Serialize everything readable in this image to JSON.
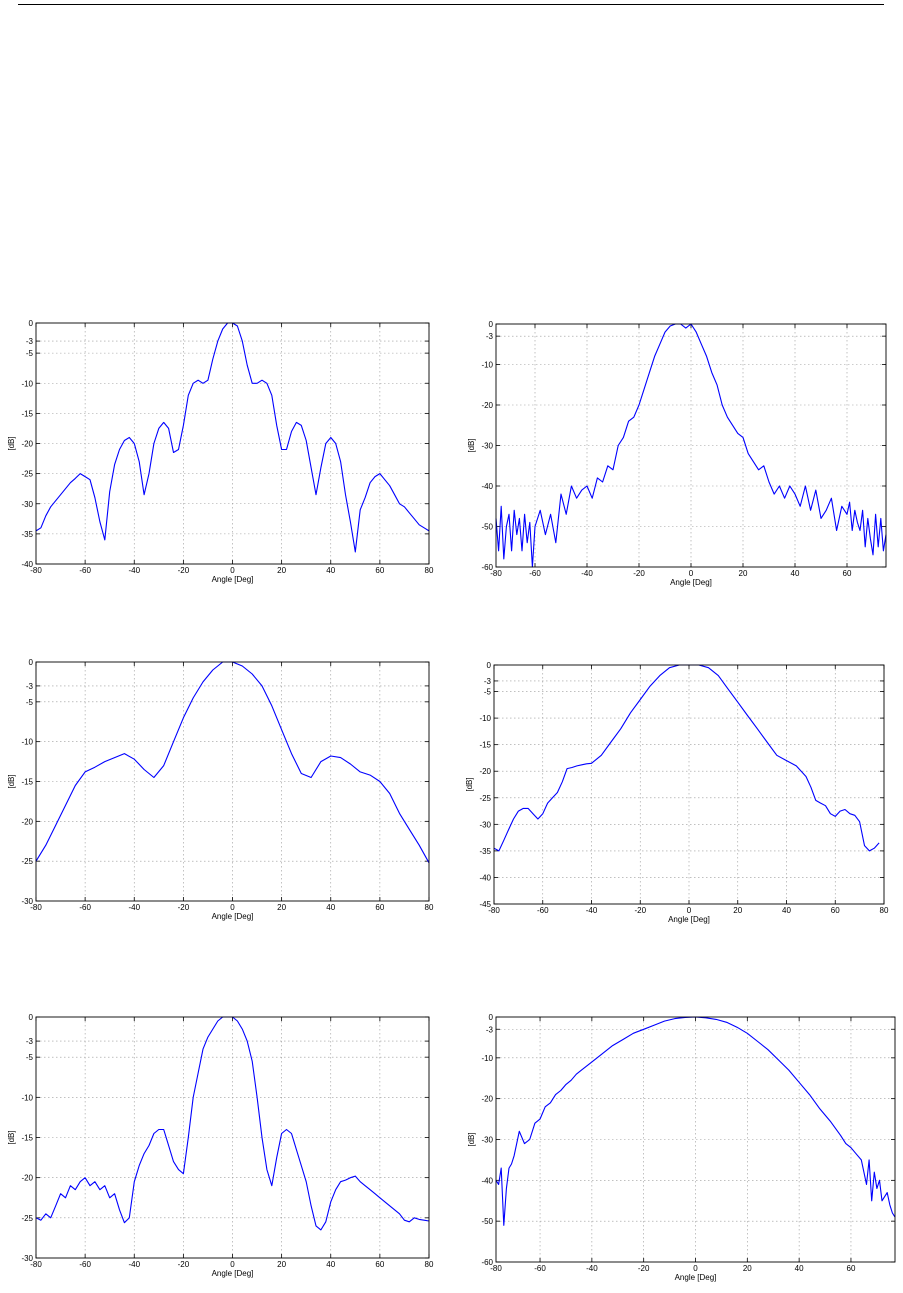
{
  "colors": {
    "line": "#0000ff",
    "grid": "#9a9a9a",
    "axis": "#000000",
    "background": "#ffffff"
  },
  "chart_data": [
    {
      "type": "line",
      "xlabel": "Angle [Deg]",
      "ylabel": "[dB]",
      "xlim": [
        -80,
        80
      ],
      "ylim": [
        -40,
        0
      ],
      "xticks": [
        -80,
        -60,
        -40,
        -20,
        0,
        20,
        40,
        60,
        80
      ],
      "yticks": [
        0,
        -3,
        -5,
        -10,
        -15,
        -20,
        -25,
        -30,
        -35,
        -40
      ],
      "grid": true,
      "series": [
        {
          "x": [
            -80,
            -78,
            -76,
            -74,
            -72,
            -70,
            -68,
            -66,
            -64,
            -62,
            -60,
            -58,
            -56,
            -54,
            -52,
            -50,
            -48,
            -46,
            -44,
            -42,
            -40,
            -38,
            -36,
            -34,
            -32,
            -30,
            -28,
            -26,
            -24,
            -22,
            -20,
            -18,
            -16,
            -14,
            -12,
            -10,
            -8,
            -6,
            -4,
            -2,
            0,
            2,
            4,
            6,
            8,
            10,
            12,
            14,
            16,
            18,
            20,
            22,
            24,
            26,
            28,
            30,
            32,
            34,
            36,
            38,
            40,
            42,
            44,
            46,
            48,
            50,
            52,
            54,
            56,
            58,
            60,
            62,
            64,
            66,
            68,
            70,
            72,
            74,
            76,
            78,
            80
          ],
          "y": [
            -34.5,
            -34,
            -32,
            -30.5,
            -29.5,
            -28.5,
            -27.5,
            -26.5,
            -25.8,
            -25,
            -25.5,
            -26,
            -29,
            -33,
            -36,
            -28,
            -23.5,
            -21,
            -19.5,
            -19,
            -20,
            -23,
            -28.5,
            -25,
            -20,
            -17.5,
            -16.5,
            -17.5,
            -21.5,
            -21,
            -17,
            -12,
            -10,
            -9.5,
            -10,
            -9.5,
            -6,
            -3,
            -1,
            0,
            0,
            -0.5,
            -3,
            -7,
            -10,
            -10,
            -9.5,
            -10,
            -12,
            -17,
            -21,
            -21,
            -18,
            -16.5,
            -17,
            -19.5,
            -24,
            -28.5,
            -24,
            -20,
            -19,
            -20,
            -23,
            -28.5,
            -33,
            -38,
            -31,
            -29,
            -26.5,
            -25.5,
            -25,
            -26,
            -27,
            -28.5,
            -30,
            -30.5,
            -31.5,
            -32.5,
            -33.5,
            -34,
            -34.5
          ]
        }
      ]
    },
    {
      "type": "line",
      "xlabel": "Angle [Deg]",
      "ylabel": "[dB]",
      "xlim": [
        -75,
        75
      ],
      "ylim": [
        -60,
        0
      ],
      "xticks": [
        -80,
        -60,
        -40,
        -20,
        0,
        20,
        40,
        60
      ],
      "xticklabels": [
        "-80",
        "-60",
        "-40",
        "-20",
        "0",
        "20",
        "40",
        "60"
      ],
      "yticks": [
        0,
        -3,
        -10,
        -20,
        -30,
        -40,
        -50,
        -60
      ],
      "grid": true,
      "series": [
        {
          "x": [
            -75,
            -74,
            -73,
            -72,
            -71,
            -70,
            -69,
            -68,
            -67,
            -66,
            -65,
            -64,
            -63,
            -62,
            -61,
            -60,
            -58,
            -56,
            -54,
            -52,
            -50,
            -48,
            -46,
            -44,
            -42,
            -40,
            -38,
            -36,
            -34,
            -32,
            -30,
            -28,
            -26,
            -24,
            -22,
            -20,
            -18,
            -16,
            -14,
            -12,
            -10,
            -8,
            -6,
            -4,
            -2,
            0,
            2,
            4,
            6,
            8,
            10,
            12,
            14,
            16,
            18,
            20,
            22,
            24,
            26,
            28,
            30,
            32,
            34,
            36,
            38,
            40,
            42,
            44,
            46,
            48,
            50,
            52,
            54,
            56,
            58,
            60,
            61,
            62,
            63,
            64,
            65,
            66,
            67,
            68,
            69,
            70,
            71,
            72,
            73,
            74,
            75
          ],
          "y": [
            -48,
            -56,
            -45,
            -58,
            -50,
            -47,
            -56,
            -46,
            -52,
            -48,
            -56,
            -47,
            -54,
            -49,
            -60,
            -50,
            -46,
            -52,
            -47,
            -54,
            -42,
            -47,
            -40,
            -43,
            -41,
            -40,
            -43,
            -38,
            -39,
            -35,
            -36,
            -30,
            -28,
            -24,
            -23,
            -20,
            -16,
            -12,
            -8,
            -5,
            -2,
            -0.5,
            0,
            0,
            -1,
            0,
            -2,
            -5,
            -8,
            -12,
            -15,
            -20,
            -23,
            -25,
            -27,
            -28,
            -32,
            -34,
            -36,
            -35,
            -39,
            -42,
            -40,
            -43,
            -40,
            -42,
            -45,
            -40,
            -46,
            -41,
            -48,
            -46,
            -43,
            -51,
            -45,
            -47,
            -44,
            -51,
            -46,
            -49,
            -51,
            -46,
            -55,
            -48,
            -53,
            -57,
            -47,
            -55,
            -48,
            -56,
            -52
          ]
        }
      ]
    },
    {
      "type": "line",
      "xlabel": "Angle [Deg]",
      "ylabel": "[dB]",
      "xlim": [
        -80,
        80
      ],
      "ylim": [
        -30,
        0
      ],
      "xticks": [
        -80,
        -60,
        -40,
        -20,
        0,
        20,
        40,
        60,
        80
      ],
      "yticks": [
        0,
        -3,
        -5,
        -10,
        -15,
        -20,
        -25,
        -30
      ],
      "grid": true,
      "series": [
        {
          "x": [
            -80,
            -76,
            -72,
            -68,
            -64,
            -60,
            -56,
            -52,
            -48,
            -44,
            -40,
            -36,
            -32,
            -28,
            -24,
            -20,
            -16,
            -12,
            -8,
            -4,
            0,
            4,
            8,
            12,
            16,
            20,
            24,
            28,
            32,
            36,
            40,
            44,
            48,
            52,
            56,
            60,
            64,
            68,
            72,
            76,
            80
          ],
          "y": [
            -25,
            -23,
            -20.5,
            -18,
            -15.5,
            -13.8,
            -13.2,
            -12.5,
            -12,
            -11.5,
            -12.2,
            -13.5,
            -14.5,
            -13,
            -10,
            -7,
            -4.5,
            -2.5,
            -1,
            0,
            0,
            -0.5,
            -1.5,
            -3,
            -5.5,
            -8.5,
            -11.5,
            -14,
            -14.5,
            -12.5,
            -11.8,
            -12,
            -12.8,
            -13.8,
            -14.2,
            -15,
            -16.5,
            -19,
            -21,
            -23,
            -25.2
          ]
        }
      ]
    },
    {
      "type": "line",
      "xlabel": "Angle [Deg]",
      "ylabel": "[dB]",
      "xlim": [
        -80,
        80
      ],
      "ylim": [
        -45,
        0
      ],
      "xticks": [
        -80,
        -60,
        -40,
        -20,
        0,
        20,
        40,
        60,
        80
      ],
      "yticks": [
        0,
        -3,
        -5,
        -10,
        -15,
        -20,
        -25,
        -30,
        -35,
        -40,
        -45
      ],
      "grid": true,
      "series": [
        {
          "x": [
            -80,
            -78,
            -76,
            -74,
            -72,
            -70,
            -68,
            -66,
            -64,
            -62,
            -60,
            -58,
            -56,
            -54,
            -52,
            -50,
            -48,
            -46,
            -44,
            -42,
            -40,
            -36,
            -32,
            -28,
            -24,
            -20,
            -16,
            -12,
            -8,
            -4,
            0,
            4,
            8,
            12,
            16,
            20,
            24,
            28,
            32,
            36,
            40,
            44,
            48,
            50,
            52,
            54,
            56,
            58,
            60,
            62,
            64,
            66,
            68,
            70,
            72,
            74,
            76,
            78
          ],
          "y": [
            -34.5,
            -35,
            -33,
            -31,
            -29,
            -27.5,
            -27,
            -27,
            -28,
            -29,
            -28,
            -26,
            -25,
            -24,
            -22,
            -19.5,
            -19.3,
            -19,
            -18.8,
            -18.6,
            -18.5,
            -17,
            -14.5,
            -12,
            -9,
            -6.5,
            -4,
            -2,
            -0.5,
            0,
            0,
            0,
            -0.5,
            -2,
            -4.5,
            -7,
            -9.5,
            -12,
            -14.5,
            -17,
            -18,
            -19,
            -21,
            -23,
            -25.5,
            -26,
            -26.5,
            -28,
            -28.5,
            -27.5,
            -27.2,
            -28,
            -28.3,
            -29.5,
            -34,
            -35,
            -34.5,
            -33.5
          ]
        }
      ]
    },
    {
      "type": "line",
      "xlabel": "Angle [Deg]",
      "ylabel": "[dB]",
      "xlim": [
        -80,
        80
      ],
      "ylim": [
        -30,
        0
      ],
      "xticks": [
        -80,
        -60,
        -40,
        -20,
        0,
        20,
        40,
        60,
        80
      ],
      "yticks": [
        0,
        -3,
        -5,
        -10,
        -15,
        -20,
        -25,
        -30
      ],
      "grid": true,
      "series": [
        {
          "x": [
            -80,
            -78,
            -76,
            -74,
            -72,
            -70,
            -68,
            -66,
            -64,
            -62,
            -60,
            -58,
            -56,
            -54,
            -52,
            -50,
            -48,
            -46,
            -44,
            -42,
            -40,
            -38,
            -36,
            -34,
            -32,
            -30,
            -28,
            -26,
            -24,
            -22,
            -20,
            -18,
            -16,
            -14,
            -12,
            -10,
            -8,
            -6,
            -4,
            -2,
            0,
            2,
            4,
            6,
            8,
            10,
            12,
            14,
            16,
            18,
            20,
            22,
            24,
            26,
            28,
            30,
            32,
            34,
            36,
            38,
            40,
            42,
            44,
            46,
            48,
            50,
            52,
            54,
            56,
            58,
            60,
            62,
            64,
            66,
            68,
            70,
            72,
            74,
            76,
            78,
            80
          ],
          "y": [
            -25,
            -25.3,
            -24.5,
            -25,
            -23.5,
            -22,
            -22.5,
            -21,
            -21.5,
            -20.5,
            -20,
            -21,
            -20.5,
            -21.5,
            -21,
            -22.5,
            -22,
            -24,
            -25.6,
            -25,
            -20.5,
            -18.5,
            -17,
            -16,
            -14.5,
            -14,
            -14,
            -16,
            -18,
            -19,
            -19.5,
            -15,
            -10,
            -7,
            -4,
            -2.5,
            -1.5,
            -0.5,
            0,
            0,
            0,
            -0.5,
            -1.5,
            -3,
            -5.5,
            -10,
            -15,
            -19,
            -21,
            -17.5,
            -14.5,
            -14,
            -14.5,
            -16.5,
            -18.5,
            -20.5,
            -23.5,
            -26,
            -26.5,
            -25.5,
            -23,
            -21.5,
            -20.5,
            -20.3,
            -20,
            -19.8,
            -20.5,
            -21,
            -21.5,
            -22,
            -22.5,
            -23,
            -23.5,
            -24,
            -24.5,
            -25.3,
            -25.5,
            -25,
            -25.2,
            -25.3,
            -25.4
          ]
        }
      ]
    },
    {
      "type": "line",
      "xlabel": "Angle [Deg]",
      "ylabel": "[dB]",
      "xlim": [
        -77,
        77
      ],
      "ylim": [
        -60,
        0
      ],
      "xticks": [
        -80,
        -60,
        -40,
        -20,
        0,
        20,
        40,
        60
      ],
      "yticks": [
        0,
        -3,
        -10,
        -20,
        -30,
        -40,
        -50,
        -60
      ],
      "grid": true,
      "series": [
        {
          "x": [
            -77,
            -76,
            -75,
            -74,
            -73,
            -72,
            -71,
            -70,
            -68,
            -66,
            -64,
            -62,
            -60,
            -58,
            -56,
            -54,
            -52,
            -50,
            -48,
            -46,
            -44,
            -40,
            -36,
            -32,
            -28,
            -24,
            -20,
            -16,
            -12,
            -8,
            -4,
            0,
            4,
            8,
            12,
            16,
            20,
            24,
            28,
            32,
            36,
            40,
            44,
            48,
            52,
            56,
            58,
            60,
            62,
            64,
            66,
            67,
            68,
            69,
            70,
            71,
            72,
            73,
            74,
            75,
            76,
            77
          ],
          "y": [
            -40,
            -41,
            -37,
            -51,
            -42,
            -37,
            -36,
            -34,
            -28,
            -31,
            -30,
            -26,
            -25,
            -22,
            -21,
            -19,
            -18,
            -16.5,
            -15.5,
            -14,
            -13,
            -11,
            -9,
            -7,
            -5.5,
            -4,
            -3,
            -2,
            -1,
            -0.4,
            -0.1,
            0,
            -0.2,
            -0.6,
            -1.3,
            -2.5,
            -4,
            -6,
            -8,
            -10.5,
            -13,
            -16,
            -19,
            -22.5,
            -25.5,
            -29,
            -31,
            -32,
            -33.5,
            -35,
            -41,
            -35,
            -45,
            -38,
            -42,
            -40,
            -45,
            -44,
            -43,
            -46,
            -48,
            -49
          ]
        }
      ]
    }
  ]
}
